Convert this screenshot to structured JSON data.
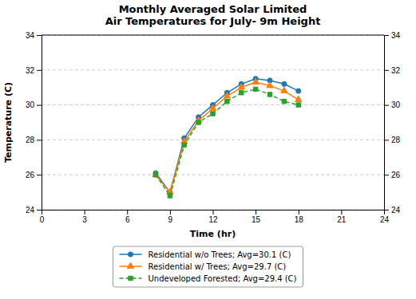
{
  "chart_data": {
    "type": "line",
    "title": "Monthly Averaged Solar Limited\nAir Temperatures for July- 9m Height",
    "x_label": "Time (hr)",
    "y_label": "Temperature (C)",
    "x": [
      8,
      9,
      10,
      11,
      12,
      13,
      14,
      15,
      16,
      17,
      18
    ],
    "series": [
      {
        "name": "Residential w/o Trees; Avg=30.1 (C)",
        "marker": "circle",
        "line_style": "solid",
        "values": [
          26.1,
          25.0,
          28.1,
          29.3,
          30.0,
          30.7,
          31.2,
          31.5,
          31.4,
          31.2,
          30.8
        ]
      },
      {
        "name": "Residential w/ Trees; Avg=29.7 (C)",
        "marker": "triangle",
        "line_style": "solid",
        "values": [
          26.0,
          25.0,
          27.9,
          29.1,
          29.8,
          30.5,
          31.0,
          31.3,
          31.1,
          30.8,
          30.3
        ]
      },
      {
        "name": "Undeveloped Forested; Avg=29.4 (C)",
        "marker": "square",
        "line_style": "dashed",
        "values": [
          26.0,
          24.8,
          27.7,
          29.0,
          29.5,
          30.2,
          30.7,
          30.9,
          30.6,
          30.2,
          30.0
        ]
      }
    ],
    "xlim": [
      0,
      24
    ],
    "xticks": [
      0,
      3,
      6,
      9,
      12,
      15,
      18,
      21,
      24
    ],
    "ylim": [
      24,
      34
    ],
    "yticks": [
      24,
      26,
      28,
      30,
      32,
      34
    ],
    "y2lim": [
      24,
      34
    ],
    "y2ticks": [
      24,
      26,
      28,
      30,
      32,
      34
    ],
    "grid": true,
    "legend": "bottom"
  }
}
